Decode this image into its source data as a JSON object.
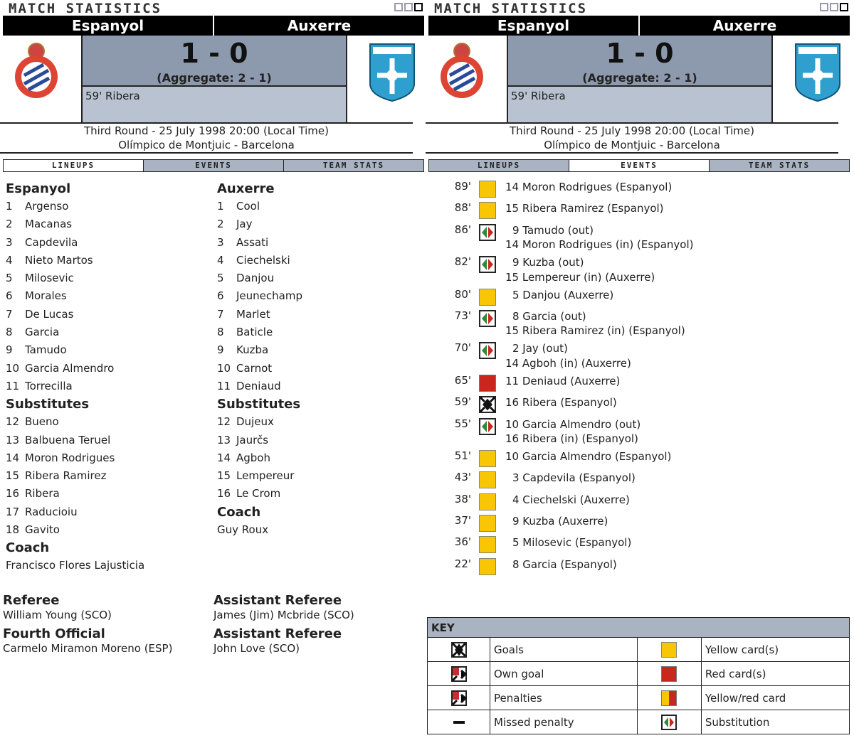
{
  "title": "MATCH STATISTICS",
  "match": {
    "home": "Espanyol",
    "away": "Auxerre",
    "score": "1 - 0",
    "aggregate": "(Aggregate: 2 - 1)",
    "scorers": "59' Ribera",
    "round_date": "Third Round - 25 July 1998 20:00 (Local Time)",
    "venue": "Olímpico de Montjuic - Barcelona"
  },
  "tabs": [
    "LINEUPS",
    "EVENTS",
    "TEAM STATS"
  ],
  "lineups": {
    "home": {
      "team": "Espanyol",
      "starters": [
        [
          "1",
          "Argenso"
        ],
        [
          "2",
          "Macanas"
        ],
        [
          "3",
          "Capdevila"
        ],
        [
          "4",
          "Nieto Martos"
        ],
        [
          "5",
          "Milosevic"
        ],
        [
          "6",
          "Morales"
        ],
        [
          "7",
          "De Lucas"
        ],
        [
          "8",
          "Garcia"
        ],
        [
          "9",
          "Tamudo"
        ],
        [
          "10",
          "Garcia Almendro"
        ],
        [
          "11",
          "Torrecilla"
        ]
      ],
      "subs_label": "Substitutes",
      "subs": [
        [
          "12",
          "Bueno"
        ],
        [
          "13",
          "Balbuena Teruel"
        ],
        [
          "14",
          "Moron Rodrigues"
        ],
        [
          "15",
          "Ribera Ramirez"
        ],
        [
          "16",
          "Ribera"
        ],
        [
          "17",
          "Raducioiu"
        ],
        [
          "18",
          "Gavito"
        ]
      ],
      "coach_label": "Coach",
      "coach": "Francisco Flores Lajusticia"
    },
    "away": {
      "team": "Auxerre",
      "starters": [
        [
          "1",
          "Cool"
        ],
        [
          "2",
          "Jay"
        ],
        [
          "3",
          "Assati"
        ],
        [
          "4",
          "Ciechelski"
        ],
        [
          "5",
          "Danjou"
        ],
        [
          "6",
          "Jeunechamp"
        ],
        [
          "7",
          "Marlet"
        ],
        [
          "8",
          "Baticle"
        ],
        [
          "9",
          "Kuzba"
        ],
        [
          "10",
          "Carnot"
        ],
        [
          "11",
          "Deniaud"
        ]
      ],
      "subs_label": "Substitutes",
      "subs": [
        [
          "12",
          "Dujeux"
        ],
        [
          "13",
          "Jaurčs"
        ],
        [
          "14",
          "Agboh"
        ],
        [
          "15",
          "Lempereur"
        ],
        [
          "16",
          "Le Crom"
        ]
      ],
      "coach_label": "Coach",
      "coach": "Guy Roux"
    }
  },
  "officials": [
    {
      "role": "Referee",
      "name": "William Young (SCO)"
    },
    {
      "role": "Assistant Referee",
      "name": "James (Jim) Mcbride (SCO)"
    },
    {
      "role": "Fourth Official",
      "name": "Carmelo Miramon Moreno (ESP)"
    },
    {
      "role": "Assistant Referee",
      "name": "John Love (SCO)"
    }
  ],
  "events": [
    {
      "min": "89'",
      "type": "yellow",
      "lines": [
        "14 Moron Rodrigues (Espanyol)"
      ]
    },
    {
      "min": "88'",
      "type": "yellow",
      "lines": [
        "15 Ribera Ramirez (Espanyol)"
      ]
    },
    {
      "min": "86'",
      "type": "sub",
      "lines": [
        "9 Tamudo (out)",
        "14 Moron Rodrigues (in) (Espanyol)"
      ]
    },
    {
      "min": "82'",
      "type": "sub",
      "lines": [
        "9 Kuzba (out)",
        "15 Lempereur (in) (Auxerre)"
      ]
    },
    {
      "min": "80'",
      "type": "yellow",
      "lines": [
        "5 Danjou (Auxerre)"
      ]
    },
    {
      "min": "73'",
      "type": "sub",
      "lines": [
        "8 Garcia (out)",
        "15 Ribera Ramirez (in) (Espanyol)"
      ]
    },
    {
      "min": "70'",
      "type": "sub",
      "lines": [
        "2 Jay (out)",
        "14 Agboh (in) (Auxerre)"
      ]
    },
    {
      "min": "65'",
      "type": "red",
      "lines": [
        "11 Deniaud (Auxerre)"
      ]
    },
    {
      "min": "59'",
      "type": "goal",
      "lines": [
        "16 Ribera (Espanyol)"
      ]
    },
    {
      "min": "55'",
      "type": "sub",
      "lines": [
        "10 Garcia Almendro (out)",
        "16 Ribera (in) (Espanyol)"
      ]
    },
    {
      "min": "51'",
      "type": "yellow",
      "lines": [
        "10 Garcia Almendro (Espanyol)"
      ]
    },
    {
      "min": "43'",
      "type": "yellow",
      "lines": [
        "3 Capdevila (Espanyol)"
      ]
    },
    {
      "min": "38'",
      "type": "yellow",
      "lines": [
        "4 Ciechelski (Auxerre)"
      ]
    },
    {
      "min": "37'",
      "type": "yellow",
      "lines": [
        "9 Kuzba (Auxerre)"
      ]
    },
    {
      "min": "36'",
      "type": "yellow",
      "lines": [
        "5 Milosevic (Espanyol)"
      ]
    },
    {
      "min": "22'",
      "type": "yellow",
      "lines": [
        "8 Garcia (Espanyol)"
      ]
    }
  ],
  "key": {
    "title": "KEY",
    "rows": [
      [
        "Goals",
        "Yellow card(s)"
      ],
      [
        "Own goal",
        "Red card(s)"
      ],
      [
        "Penalties",
        "Yellow/red card"
      ],
      [
        "Missed penalty",
        "Substitution"
      ]
    ]
  },
  "colors": {
    "yellow": "#f9c606",
    "red": "#c9271e",
    "header": "#000000",
    "tab": "#aab3c2",
    "score_bg": "#8d99ac"
  }
}
